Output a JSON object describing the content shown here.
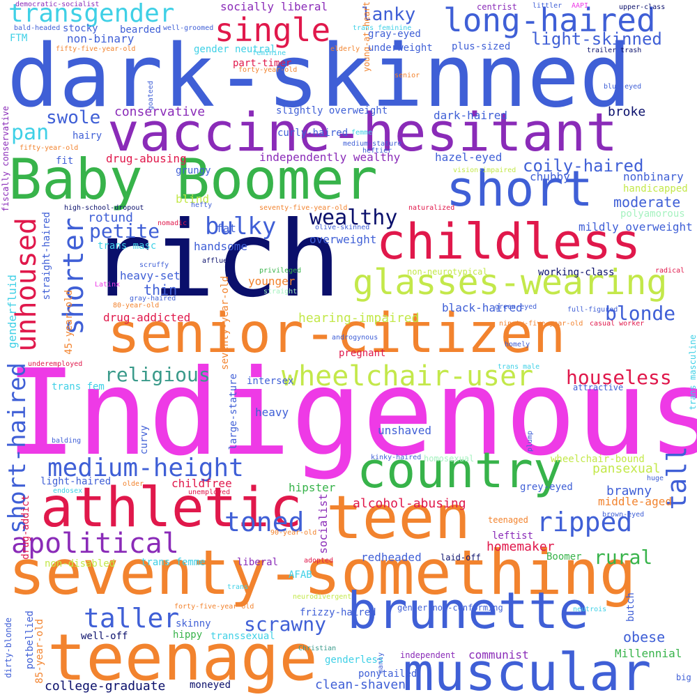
{
  "palette": {
    "blue": "#3f5fd6",
    "navy": "#0a0f6b",
    "purple": "#8a2bb8",
    "magenta": "#ee3ae6",
    "green": "#37b34a",
    "orange": "#f2832e",
    "crimson": "#e0184b",
    "lime": "#c3e84a",
    "cyan": "#3fd0e6",
    "teal": "#3a9a8a",
    "mint": "#a6f2c0"
  },
  "words": [
    {
      "id": "indigenous",
      "text": "Indigenous",
      "color": "magenta"
    },
    {
      "id": "dark-skinned",
      "text": "dark-skinned",
      "color": "blue"
    },
    {
      "id": "rich",
      "text": "rich",
      "color": "navy"
    },
    {
      "id": "seventy-something",
      "text": "seventy-something",
      "color": "orange"
    },
    {
      "id": "senior-citizen",
      "text": "senior-citizen",
      "color": "orange"
    },
    {
      "id": "vaccine-hesitant",
      "text": "vaccine-hesitant",
      "color": "purple"
    },
    {
      "id": "baby-boomer",
      "text": "Baby Boomer",
      "color": "green"
    },
    {
      "id": "teenage",
      "text": "teenage",
      "color": "orange"
    },
    {
      "id": "muscular",
      "text": "muscular",
      "color": "blue"
    },
    {
      "id": "teen",
      "text": "teen",
      "color": "orange"
    },
    {
      "id": "athletic",
      "text": "athletic",
      "color": "crimson"
    },
    {
      "id": "country",
      "text": "country",
      "color": "green"
    },
    {
      "id": "brunette",
      "text": "brunette",
      "color": "blue"
    },
    {
      "id": "childless",
      "text": "childless",
      "color": "crimson"
    },
    {
      "id": "short",
      "text": "short",
      "color": "blue"
    },
    {
      "id": "glasses-wearing",
      "text": "glasses-wearing",
      "color": "lime"
    },
    {
      "id": "single",
      "text": "single",
      "color": "crimson"
    },
    {
      "id": "long-haired",
      "text": "long-haired",
      "color": "blue"
    },
    {
      "id": "transgender",
      "text": "transgender",
      "color": "cyan"
    },
    {
      "id": "wheelchair-user",
      "text": "wheelchair-user",
      "color": "lime"
    },
    {
      "id": "apolitical",
      "text": "apolitical",
      "color": "purple"
    },
    {
      "id": "medium-height",
      "text": "medium-height",
      "color": "blue"
    },
    {
      "id": "unhoused",
      "text": "unhoused",
      "color": "crimson"
    },
    {
      "id": "shorter",
      "text": "shorter",
      "color": "blue"
    },
    {
      "id": "taller",
      "text": "taller",
      "color": "blue"
    },
    {
      "id": "ripped",
      "text": "ripped",
      "color": "blue"
    },
    {
      "id": "toned",
      "text": "toned",
      "color": "blue"
    },
    {
      "id": "tall",
      "text": "tall",
      "color": "blue"
    },
    {
      "id": "bulky",
      "text": "bulky",
      "color": "blue"
    },
    {
      "id": "short-haired",
      "text": "short-haired",
      "color": "blue"
    },
    {
      "id": "wealthy",
      "text": "wealthy",
      "color": "navy"
    },
    {
      "id": "houseless",
      "text": "houseless",
      "color": "crimson"
    },
    {
      "id": "religious",
      "text": "religious",
      "color": "teal"
    },
    {
      "id": "blonde",
      "text": "blonde",
      "color": "blue"
    },
    {
      "id": "rural",
      "text": "rural",
      "color": "green"
    },
    {
      "id": "scrawny",
      "text": "scrawny",
      "color": "blue"
    },
    {
      "id": "petite",
      "text": "petite",
      "color": "blue"
    },
    {
      "id": "coily-haired",
      "text": "coily-haired",
      "color": "blue"
    },
    {
      "id": "swole",
      "text": "swole",
      "color": "blue"
    },
    {
      "id": "pan",
      "text": "pan",
      "color": "cyan"
    },
    {
      "id": "lanky",
      "text": "lanky",
      "color": "blue"
    },
    {
      "id": "light-skinned",
      "text": "light-skinned",
      "color": "blue"
    },
    {
      "id": "moderate",
      "text": "moderate",
      "color": "blue"
    },
    {
      "id": "obese",
      "text": "obese",
      "color": "blue"
    },
    {
      "id": "rotund",
      "text": "rotund",
      "color": "blue"
    },
    {
      "id": "thin",
      "text": "thin",
      "color": "blue"
    },
    {
      "id": "conservative",
      "text": "conservative",
      "color": "purple"
    },
    {
      "id": "broke",
      "text": "broke",
      "color": "navy"
    },
    {
      "id": "hearing-impaired",
      "text": "hearing-impaired",
      "color": "lime"
    },
    {
      "id": "homemaker",
      "text": "homemaker",
      "color": "crimson"
    },
    {
      "id": "independently-wealthy",
      "text": "independently wealthy",
      "color": "purple"
    },
    {
      "id": "drug-addicted",
      "text": "drug-addicted",
      "color": "crimson"
    },
    {
      "id": "alcohol-abusing",
      "text": "alcohol-abusing",
      "color": "crimson"
    },
    {
      "id": "communist",
      "text": "communist",
      "color": "purple"
    },
    {
      "id": "brawny",
      "text": "brawny",
      "color": "blue"
    },
    {
      "id": "pansexual",
      "text": "pansexual",
      "color": "lime"
    },
    {
      "id": "socialist",
      "text": "socialist",
      "color": "purple"
    },
    {
      "id": "heavy-set",
      "text": "heavy-set",
      "color": "blue"
    },
    {
      "id": "butch",
      "text": "butch",
      "color": "blue"
    },
    {
      "id": "curly-haired",
      "text": "curly-haired",
      "color": "blue"
    },
    {
      "id": "dark-haired",
      "text": "dark-haired",
      "color": "blue"
    },
    {
      "id": "hazel-eyed",
      "text": "hazel-eyed",
      "color": "blue"
    },
    {
      "id": "slightly-overweight",
      "text": "slightly overweight",
      "color": "blue"
    },
    {
      "id": "non-binary",
      "text": "non-binary",
      "color": "blue"
    },
    {
      "id": "straight-haired",
      "text": "straight-haired",
      "color": "blue"
    },
    {
      "id": "genderfluid",
      "text": "genderfluid",
      "color": "cyan"
    },
    {
      "id": "45-year-old",
      "text": "45-year-old",
      "color": "orange"
    },
    {
      "id": "85-year-old",
      "text": "85-year-old",
      "color": "orange"
    },
    {
      "id": "drug-addict",
      "text": "drug-addict",
      "color": "crimson"
    },
    {
      "id": "fiscally-conservative",
      "text": "fiscally conservative",
      "color": "purple"
    },
    {
      "id": "dirty-blonde",
      "text": "dirty-blonde",
      "color": "blue"
    },
    {
      "id": "potbellied",
      "text": "potbellied",
      "color": "blue"
    },
    {
      "id": "large-stature",
      "text": "large-stature",
      "color": "blue"
    },
    {
      "id": "seventy-year-old",
      "text": "seventy-year-old",
      "color": "orange"
    },
    {
      "id": "young-at-heart",
      "text": "young-at-heart",
      "color": "orange"
    },
    {
      "id": "college-graduate",
      "text": "college-graduate",
      "color": "navy"
    },
    {
      "id": "clean-shaven",
      "text": "clean-shaven",
      "color": "blue"
    },
    {
      "id": "moneyed",
      "text": "moneyed",
      "color": "navy"
    },
    {
      "id": "ponytailed",
      "text": "ponytailed",
      "color": "blue"
    },
    {
      "id": "genderless",
      "text": "genderless",
      "color": "cyan"
    },
    {
      "id": "independent",
      "text": "independent",
      "color": "purple"
    },
    {
      "id": "millennial",
      "text": "Millennial",
      "color": "green"
    },
    {
      "id": "big",
      "text": "big",
      "color": "blue"
    },
    {
      "id": "well-off",
      "text": "well-off",
      "color": "navy"
    },
    {
      "id": "hippy",
      "text": "hippy",
      "color": "green"
    },
    {
      "id": "transsexual",
      "text": "transsexual",
      "color": "cyan"
    },
    {
      "id": "skinny",
      "text": "skinny",
      "color": "blue"
    },
    {
      "id": "frizzy-haired",
      "text": "frizzy-haired",
      "color": "blue"
    },
    {
      "id": "gender-non-conforming",
      "text": "gender non-conforming",
      "color": "blue"
    },
    {
      "id": "redheaded",
      "text": "redheaded",
      "color": "blue"
    },
    {
      "id": "leftist",
      "text": "leftist",
      "color": "purple"
    },
    {
      "id": "middle-aged",
      "text": "middle-aged",
      "color": "orange"
    },
    {
      "id": "grey-eyed",
      "text": "grey-eyed",
      "color": "blue"
    },
    {
      "id": "childfree",
      "text": "childfree",
      "color": "crimson"
    },
    {
      "id": "hipster",
      "text": "hipster",
      "color": "green"
    },
    {
      "id": "light-haired",
      "text": "light-haired",
      "color": "blue"
    },
    {
      "id": "curvy",
      "text": "curvy",
      "color": "blue"
    },
    {
      "id": "heavy",
      "text": "heavy",
      "color": "blue"
    },
    {
      "id": "unshaved",
      "text": "unshaved",
      "color": "blue"
    },
    {
      "id": "intersex",
      "text": "intersex",
      "color": "blue"
    },
    {
      "id": "pregnant",
      "text": "pregnant",
      "color": "crimson"
    },
    {
      "id": "trans-fem",
      "text": "trans fem",
      "color": "cyan"
    },
    {
      "id": "trans-femme",
      "text": "trans femme",
      "color": "cyan"
    },
    {
      "id": "liberal",
      "text": "liberal",
      "color": "purple"
    },
    {
      "id": "laid-off",
      "text": "laid-off",
      "color": "navy"
    },
    {
      "id": "boomer",
      "text": "Boomer",
      "color": "green"
    },
    {
      "id": "afab",
      "text": "AFAB",
      "color": "cyan"
    },
    {
      "id": "non-disabled",
      "text": "non-disabled",
      "color": "lime"
    },
    {
      "id": "fat",
      "text": "fat",
      "color": "blue"
    },
    {
      "id": "handsome",
      "text": "handsome",
      "color": "blue"
    },
    {
      "id": "overweight",
      "text": "overweight",
      "color": "blue"
    },
    {
      "id": "younger",
      "text": "younger",
      "color": "orange"
    },
    {
      "id": "black-haired",
      "text": "black-haired",
      "color": "blue"
    },
    {
      "id": "chubby",
      "text": "chubby",
      "color": "blue"
    },
    {
      "id": "nonbinary",
      "text": "nonbinary",
      "color": "blue"
    },
    {
      "id": "handicapped",
      "text": "handicapped",
      "color": "lime"
    },
    {
      "id": "mildly-overweight",
      "text": "mildly overweight",
      "color": "blue"
    },
    {
      "id": "working-class",
      "text": "working-class",
      "color": "navy"
    },
    {
      "id": "non-neurotypical",
      "text": "non-neurotypical",
      "color": "lime"
    },
    {
      "id": "plus-sized",
      "text": "plus-sized",
      "color": "blue"
    },
    {
      "id": "underweight",
      "text": "underweight",
      "color": "blue"
    },
    {
      "id": "gray-eyed",
      "text": "gray-eyed",
      "color": "blue"
    },
    {
      "id": "socially-liberal",
      "text": "socially liberal",
      "color": "purple"
    },
    {
      "id": "drug-abusing",
      "text": "drug-abusing",
      "color": "crimson"
    },
    {
      "id": "part-timer",
      "text": "part-timer",
      "color": "crimson"
    },
    {
      "id": "gender-neutral",
      "text": "gender neutral",
      "color": "cyan"
    },
    {
      "id": "fit",
      "text": "fit",
      "color": "blue"
    },
    {
      "id": "hairy",
      "text": "hairy",
      "color": "blue"
    },
    {
      "id": "grungy",
      "text": "grungy",
      "color": "blue"
    },
    {
      "id": "blind",
      "text": "blind",
      "color": "lime"
    },
    {
      "id": "ftm",
      "text": "FTM",
      "color": "cyan"
    },
    {
      "id": "stocky",
      "text": "stocky",
      "color": "blue"
    },
    {
      "id": "bearded",
      "text": "bearded",
      "color": "blue"
    },
    {
      "id": "trans-masc",
      "text": "trans masc",
      "color": "cyan"
    },
    {
      "id": "trans-masculine",
      "text": "trans masculine",
      "color": "cyan"
    },
    {
      "id": "polyamorous",
      "text": "polyamorous",
      "color": "mint"
    },
    {
      "id": "democratic-socialist",
      "text": "democratic-socialist",
      "color": "purple"
    },
    {
      "id": "bald-headed",
      "text": "bald-headed",
      "color": "blue"
    },
    {
      "id": "well-groomed",
      "text": "well-groomed",
      "color": "blue"
    },
    {
      "id": "centrist",
      "text": "centrist",
      "color": "purple"
    },
    {
      "id": "littler",
      "text": "littler",
      "color": "blue"
    },
    {
      "id": "aapi",
      "text": "AAPI",
      "color": "magenta"
    },
    {
      "id": "upper-class",
      "text": "upper-class",
      "color": "navy"
    },
    {
      "id": "trash",
      "text": "trailer trash",
      "color": "navy"
    },
    {
      "id": "blue-eyed",
      "text": "blue-eyed",
      "color": "blue"
    },
    {
      "id": "elderly",
      "text": "elderly",
      "color": "orange"
    },
    {
      "id": "senior",
      "text": "senior",
      "color": "orange"
    },
    {
      "id": "trans-feminine",
      "text": "trans feminine",
      "color": "cyan"
    },
    {
      "id": "feminine",
      "text": "feminine",
      "color": "cyan"
    },
    {
      "id": "fifty-five-year-old",
      "text": "fifty-five-year-old",
      "color": "orange"
    },
    {
      "id": "forty-year-old",
      "text": "forty-year-old",
      "color": "orange"
    },
    {
      "id": "goateed",
      "text": "goateed",
      "color": "blue"
    },
    {
      "id": "fifty-year-old",
      "text": "fifty-year-old",
      "color": "orange"
    },
    {
      "id": "femme",
      "text": "femme",
      "color": "cyan"
    },
    {
      "id": "medium-stature",
      "text": "medium-stature",
      "color": "blue"
    },
    {
      "id": "heftier",
      "text": "heftier",
      "color": "blue"
    },
    {
      "id": "vision-impaired",
      "text": "vision-impaired",
      "color": "lime"
    },
    {
      "id": "high-school-dropout",
      "text": "high-school-dropout",
      "color": "navy"
    },
    {
      "id": "hefty",
      "text": "hefty",
      "color": "blue"
    },
    {
      "id": "seventy-five-year-old",
      "text": "seventy-five-year-old",
      "color": "orange"
    },
    {
      "id": "naturalized",
      "text": "naturalized",
      "color": "crimson"
    },
    {
      "id": "nomadic",
      "text": "nomadic",
      "color": "crimson"
    },
    {
      "id": "olive-skinned",
      "text": "olive-skinned",
      "color": "blue"
    },
    {
      "id": "affluent",
      "text": "affluent",
      "color": "navy"
    },
    {
      "id": "scruffy",
      "text": "scruffy",
      "color": "blue"
    },
    {
      "id": "privileged",
      "text": "privileged",
      "color": "green"
    },
    {
      "id": "straight",
      "text": "straight",
      "color": "mint"
    },
    {
      "id": "radical",
      "text": "radical",
      "color": "crimson"
    },
    {
      "id": "latinx",
      "text": "Latinx",
      "color": "magenta"
    },
    {
      "id": "gray-haired",
      "text": "gray-haired",
      "color": "blue"
    },
    {
      "id": "80-year-old",
      "text": "80-year-old",
      "color": "orange"
    },
    {
      "id": "green-eyed",
      "text": "green-eyed",
      "color": "blue"
    },
    {
      "id": "full-figured",
      "text": "full-figured",
      "color": "blue"
    },
    {
      "id": "ninety-five-year-old",
      "text": "ninety-five-year-old",
      "color": "orange"
    },
    {
      "id": "casual-worker",
      "text": "casual worker",
      "color": "crimson"
    },
    {
      "id": "homely",
      "text": "homely",
      "color": "blue"
    },
    {
      "id": "androgynous",
      "text": "androgynous",
      "color": "blue"
    },
    {
      "id": "underemployed",
      "text": "underemployed",
      "color": "crimson"
    },
    {
      "id": "trans-male",
      "text": "trans male",
      "color": "cyan"
    },
    {
      "id": "attractive",
      "text": "attractive",
      "color": "blue"
    },
    {
      "id": "plump",
      "text": "plump",
      "color": "blue"
    },
    {
      "id": "balding",
      "text": "balding",
      "color": "blue"
    },
    {
      "id": "kinky-haired",
      "text": "kinky-haired",
      "color": "blue"
    },
    {
      "id": "homosexual",
      "text": "homosexual",
      "color": "mint"
    },
    {
      "id": "wheelchair-bound",
      "text": "wheelchair-bound",
      "color": "lime"
    },
    {
      "id": "huge",
      "text": "huge",
      "color": "blue"
    },
    {
      "id": "older",
      "text": "older",
      "color": "orange"
    },
    {
      "id": "unemployed",
      "text": "unemployed",
      "color": "crimson"
    },
    {
      "id": "endosex",
      "text": "endosex",
      "color": "cyan"
    },
    {
      "id": "brown-eyed",
      "text": "brown-eyed",
      "color": "blue"
    },
    {
      "id": "teenaged",
      "text": "teenaged",
      "color": "orange"
    },
    {
      "id": "90-year-old",
      "text": "90-year-old",
      "color": "orange"
    },
    {
      "id": "adopted",
      "text": "adopted",
      "color": "crimson"
    },
    {
      "id": "trans",
      "text": "trans",
      "color": "cyan"
    },
    {
      "id": "neurodivergent",
      "text": "neurodivergent",
      "color": "lime"
    },
    {
      "id": "forty-five-year-old",
      "text": "forty-five-year-old",
      "color": "orange"
    },
    {
      "id": "neutrois",
      "text": "neutrois",
      "color": "cyan"
    },
    {
      "id": "manly",
      "text": "manly",
      "color": "blue"
    },
    {
      "id": "christian",
      "text": "Christian",
      "color": "teal"
    }
  ]
}
